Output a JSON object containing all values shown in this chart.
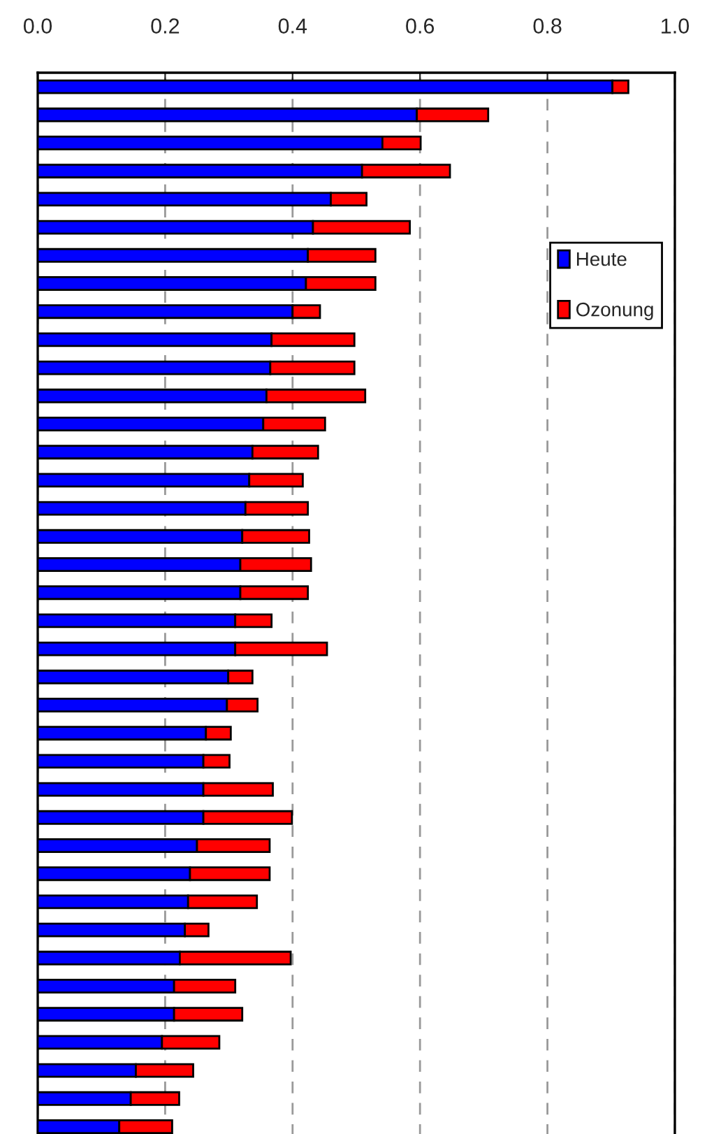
{
  "chart_data": {
    "type": "bar",
    "orientation": "horizontal",
    "stacked": true,
    "categories": [
      null,
      null,
      null,
      null,
      null,
      null,
      null,
      null,
      null,
      null,
      null,
      null,
      null,
      null,
      null,
      null,
      null,
      null,
      null,
      null,
      null,
      null,
      null,
      null,
      null,
      null,
      null,
      null,
      null,
      null,
      null,
      null,
      null,
      null,
      null,
      null,
      null,
      null
    ],
    "series": [
      {
        "name": "Heute",
        "color": "#0000ff",
        "values": [
          0.902,
          0.595,
          0.541,
          0.509,
          0.46,
          0.432,
          0.424,
          0.421,
          0.4,
          0.367,
          0.365,
          0.359,
          0.354,
          0.337,
          0.332,
          0.326,
          0.321,
          0.318,
          0.318,
          0.31,
          0.31,
          0.299,
          0.297,
          0.264,
          0.26,
          0.26,
          0.26,
          0.25,
          0.239,
          0.236,
          0.231,
          0.223,
          0.214,
          0.214,
          0.195,
          0.154,
          0.146,
          0.128
        ]
      },
      {
        "name": "Ozonung",
        "color": "#ff0000",
        "values": [
          0.025,
          0.112,
          0.06,
          0.138,
          0.056,
          0.152,
          0.106,
          0.109,
          0.043,
          0.13,
          0.132,
          0.155,
          0.097,
          0.103,
          0.084,
          0.098,
          0.105,
          0.111,
          0.106,
          0.057,
          0.144,
          0.038,
          0.048,
          0.039,
          0.041,
          0.109,
          0.139,
          0.114,
          0.125,
          0.108,
          0.037,
          0.174,
          0.096,
          0.107,
          0.09,
          0.09,
          0.076,
          0.083
        ]
      }
    ],
    "xlim": [
      0,
      1
    ],
    "xticks": [
      {
        "value": 0,
        "label": "0.0"
      },
      {
        "value": 0.2,
        "label": "0.2"
      },
      {
        "value": 0.4,
        "label": "0.4"
      },
      {
        "value": 0.6,
        "label": "0.6"
      },
      {
        "value": 0.8,
        "label": "0.8"
      },
      {
        "value": 1,
        "label": "1.0"
      }
    ],
    "grid": "x",
    "legend": "upper right"
  }
}
